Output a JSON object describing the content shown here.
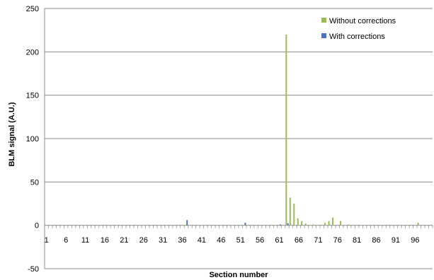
{
  "chart_data": {
    "type": "bar",
    "xlabel": "Section number",
    "ylabel": "BLM signal (A.U.)",
    "ylim": [
      -50,
      250
    ],
    "yticks": [
      -50,
      0,
      50,
      100,
      150,
      200,
      250
    ],
    "xtick_labels": [
      1,
      6,
      11,
      16,
      21,
      26,
      31,
      36,
      41,
      46,
      51,
      56,
      61,
      66,
      71,
      76,
      81,
      86,
      91,
      96
    ],
    "x_range": [
      1,
      100
    ],
    "grid": "horizontal",
    "legend_position": "top-right",
    "series": [
      {
        "name": "Without corrections",
        "color": "#9bbb59",
        "x": [
          25,
          37,
          41,
          49,
          52,
          55,
          60,
          63,
          64,
          65,
          66,
          67,
          68,
          70,
          72,
          73,
          74,
          75,
          77,
          79,
          83,
          88,
          93,
          97
        ],
        "values": [
          0.5,
          0.4,
          0.3,
          0.5,
          0.6,
          0.4,
          0.6,
          220,
          32,
          25,
          8,
          5,
          2,
          1,
          0.8,
          3,
          5,
          9,
          5,
          1,
          0.5,
          0.6,
          0.5,
          3
        ]
      },
      {
        "name": "With corrections",
        "color": "#4f6fbf",
        "x": [
          37,
          52,
          61,
          63
        ],
        "values": [
          6,
          3,
          1,
          2.5
        ]
      }
    ]
  }
}
